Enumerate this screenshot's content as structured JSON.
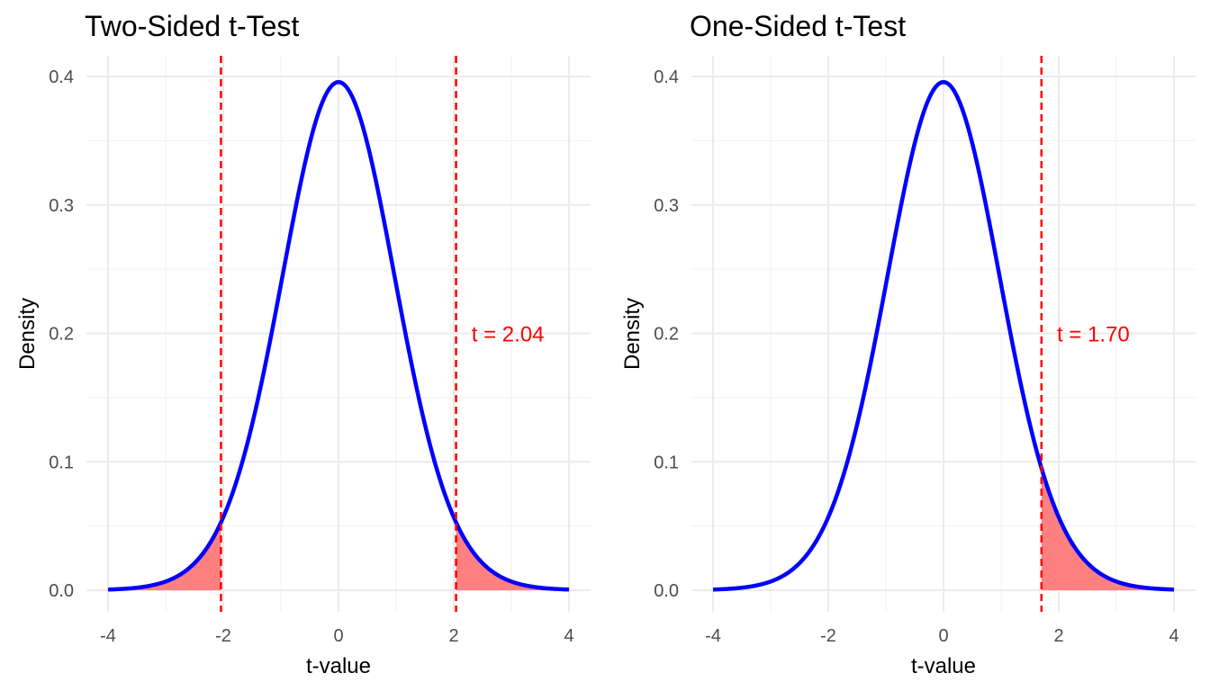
{
  "chart_data": [
    {
      "type": "line",
      "title": "Two-Sided t-Test",
      "xlabel": "t-value",
      "ylabel": "Density",
      "xlim": [
        -4,
        4
      ],
      "ylim": [
        0,
        0.4
      ],
      "x_ticks": [
        "-4",
        "-2",
        "0",
        "2",
        "4"
      ],
      "y_ticks": [
        "0.0",
        "0.1",
        "0.2",
        "0.3",
        "0.4"
      ],
      "grid": true,
      "series": [
        {
          "x": [
            -4,
            -3.5,
            -3,
            -2.5,
            -2.04,
            -1.5,
            -1,
            -0.5,
            0,
            0.5,
            1,
            1.5,
            2.04,
            2.5,
            3,
            3.5,
            4
          ],
          "y": [
            0.001,
            0.003,
            0.007,
            0.021,
            0.051,
            0.128,
            0.24,
            0.348,
            0.396,
            0.348,
            0.24,
            0.128,
            0.051,
            0.021,
            0.007,
            0.003,
            0.001
          ]
        }
      ],
      "critical_values": [
        -2.04,
        2.04
      ],
      "shaded_regions": [
        [
          -4,
          -2.04
        ],
        [
          2.04,
          4
        ]
      ],
      "annotation": {
        "text": "t = 2.04",
        "x": 2.94,
        "y": 0.2
      },
      "colors": {
        "curve": "#0000ff",
        "critical": "#ff0000",
        "fill": "#ff8080"
      }
    },
    {
      "type": "line",
      "title": "One-Sided t-Test",
      "xlabel": "t-value",
      "ylabel": "Density",
      "xlim": [
        -4,
        4
      ],
      "ylim": [
        0,
        0.4
      ],
      "x_ticks": [
        "-4",
        "-2",
        "0",
        "2",
        "4"
      ],
      "y_ticks": [
        "0.0",
        "0.1",
        "0.2",
        "0.3",
        "0.4"
      ],
      "grid": true,
      "series": [
        {
          "x": [
            -4,
            -3.5,
            -3,
            -2.5,
            -2,
            -1.5,
            -1,
            -0.5,
            0,
            0.5,
            1,
            1.5,
            1.7,
            2,
            2.5,
            3,
            3.5,
            4
          ],
          "y": [
            0.001,
            0.003,
            0.007,
            0.021,
            0.054,
            0.128,
            0.24,
            0.348,
            0.396,
            0.348,
            0.24,
            0.128,
            0.098,
            0.054,
            0.021,
            0.007,
            0.003,
            0.001
          ]
        }
      ],
      "critical_values": [
        1.7
      ],
      "shaded_regions": [
        [
          1.7,
          4
        ]
      ],
      "annotation": {
        "text": "t = 1.70",
        "x": 2.6,
        "y": 0.2
      },
      "colors": {
        "curve": "#0000ff",
        "critical": "#ff0000",
        "fill": "#ff8080"
      }
    }
  ]
}
